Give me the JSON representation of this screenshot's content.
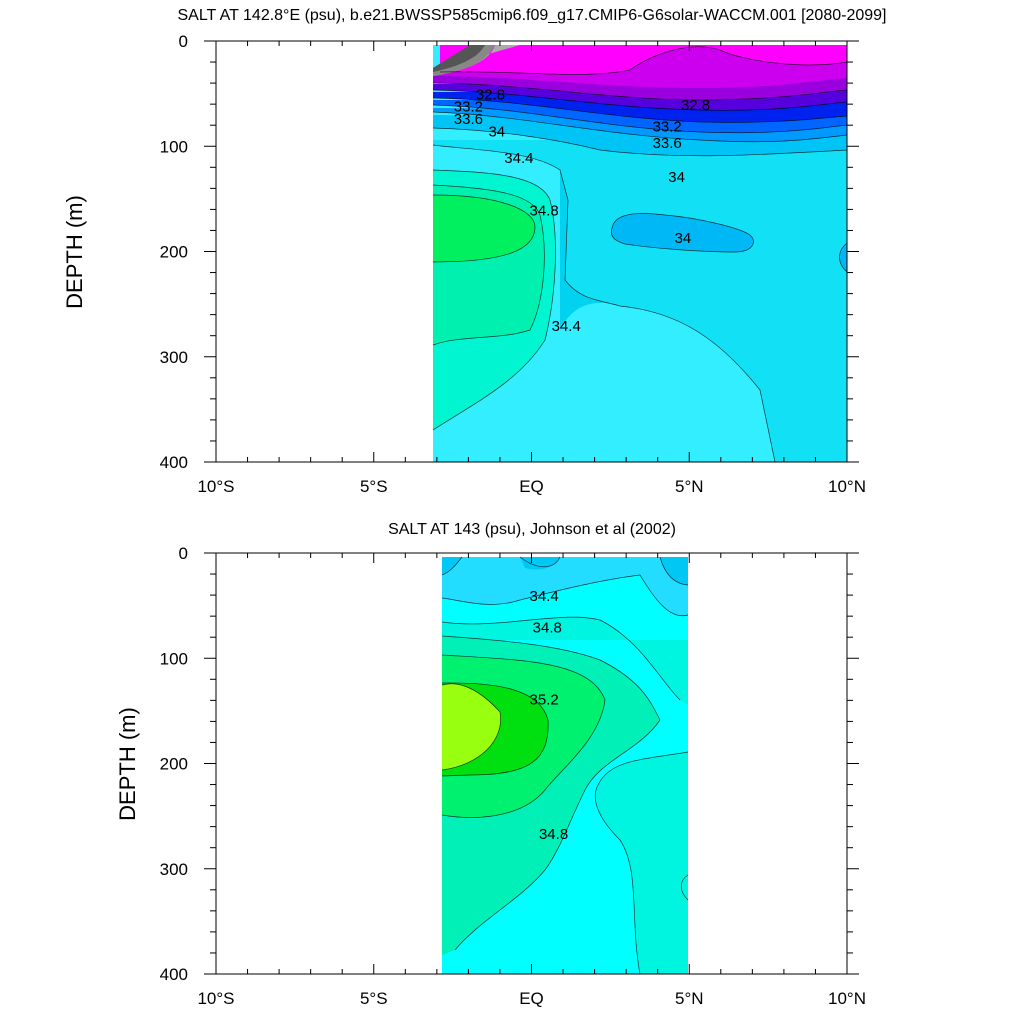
{
  "chart_data": [
    {
      "type": "contour",
      "title": "SALT AT 142.8°E (psu), b.e21.BWSSP585cmip6.f09_g17.CMIP6-G6solar-WACCM.001 [2080-2099]",
      "xlabel": "",
      "ylabel": "DEPTH (m)",
      "x_ticks": [
        "10°S",
        "5°S",
        "EQ",
        "5°N",
        "10°N"
      ],
      "y_ticks": [
        "0",
        "100",
        "200",
        "300",
        "400"
      ],
      "xlim": [
        -10,
        10
      ],
      "ylim": [
        400,
        0
      ],
      "data_extent_lat": [
        -3,
        10
      ],
      "contour_labels": [
        {
          "text": "32.8",
          "lat": -1.3,
          "depth": 52
        },
        {
          "text": "33.2",
          "lat": -2.0,
          "depth": 63
        },
        {
          "text": "33.6",
          "lat": -2.0,
          "depth": 75
        },
        {
          "text": "34",
          "lat": -1.1,
          "depth": 87
        },
        {
          "text": "34.4",
          "lat": -0.4,
          "depth": 112
        },
        {
          "text": "34.8",
          "lat": 0.4,
          "depth": 162
        },
        {
          "text": "34.4",
          "lat": 1.1,
          "depth": 272
        },
        {
          "text": "32.8",
          "lat": 5.2,
          "depth": 62
        },
        {
          "text": "33.2",
          "lat": 4.3,
          "depth": 82
        },
        {
          "text": "33.6",
          "lat": 4.3,
          "depth": 98
        },
        {
          "text": "34",
          "lat": 4.6,
          "depth": 130
        },
        {
          "text": "34",
          "lat": 4.8,
          "depth": 188
        }
      ]
    },
    {
      "type": "contour",
      "title": "SALT AT 143 (psu), Johnson et al (2002)",
      "xlabel": "",
      "ylabel": "DEPTH (m)",
      "x_ticks": [
        "10°S",
        "5°S",
        "EQ",
        "5°N",
        "10°N"
      ],
      "y_ticks": [
        "0",
        "100",
        "200",
        "300",
        "400"
      ],
      "xlim": [
        -10,
        10
      ],
      "ylim": [
        400,
        0
      ],
      "data_extent_lat": [
        -2.8,
        5
      ],
      "contour_labels": [
        {
          "text": "34.4",
          "lat": 0.4,
          "depth": 42
        },
        {
          "text": "34.8",
          "lat": 0.5,
          "depth": 72
        },
        {
          "text": "35.2",
          "lat": 0.4,
          "depth": 140
        },
        {
          "text": "34.8",
          "lat": 0.7,
          "depth": 268
        }
      ]
    }
  ]
}
